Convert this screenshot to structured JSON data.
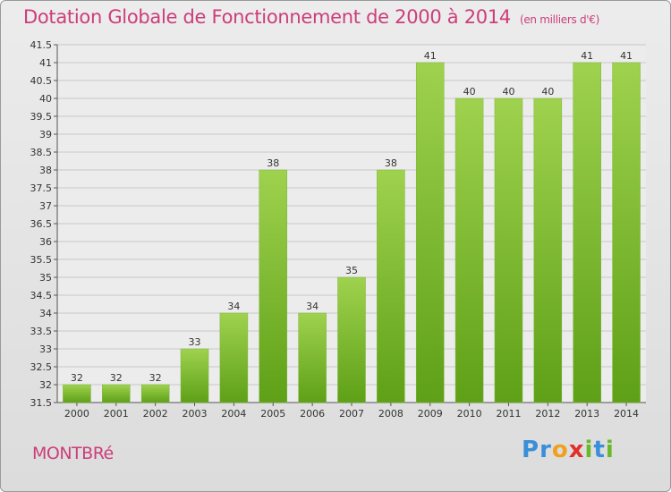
{
  "header": {
    "title": "Dotation Globale de Fonctionnement de 2000 à 2014",
    "unit": "(en milliers d'€)"
  },
  "footer": {
    "commune": "MONTBRé",
    "logo": {
      "letters": [
        "P",
        "r",
        "o",
        "x",
        "i",
        "t",
        "i"
      ],
      "colors": [
        "#3a8fd8",
        "#3a8fd8",
        "#f0a020",
        "#e0302a",
        "#6ab82a",
        "#3a8fd8",
        "#6ab82a"
      ]
    }
  },
  "colors": {
    "accent": "#cc3d7a",
    "bar_light": "#9fd24e",
    "bar_dark": "#5ea017",
    "grid": "#c8c8c8"
  },
  "chart_data": {
    "type": "bar",
    "categories": [
      "2000",
      "2001",
      "2002",
      "2003",
      "2004",
      "2005",
      "2006",
      "2007",
      "2008",
      "2009",
      "2010",
      "2011",
      "2012",
      "2013",
      "2014"
    ],
    "values": [
      32,
      32,
      32,
      33,
      34,
      38,
      34,
      35,
      38,
      41,
      40,
      40,
      40,
      41,
      41
    ],
    "data_labels": [
      "32",
      "32",
      "32",
      "33",
      "34",
      "38",
      "34",
      "35",
      "38",
      "41",
      "40",
      "40",
      "40",
      "41",
      "41"
    ],
    "y_ticks": [
      "31.5",
      "32",
      "32.5",
      "33",
      "33.5",
      "34",
      "34.5",
      "35",
      "35.5",
      "36",
      "36.5",
      "37",
      "37.5",
      "38",
      "38.5",
      "39",
      "39.5",
      "40",
      "40.5",
      "41",
      "41.5"
    ],
    "ylim": [
      31.5,
      41.5
    ],
    "grid": true
  }
}
